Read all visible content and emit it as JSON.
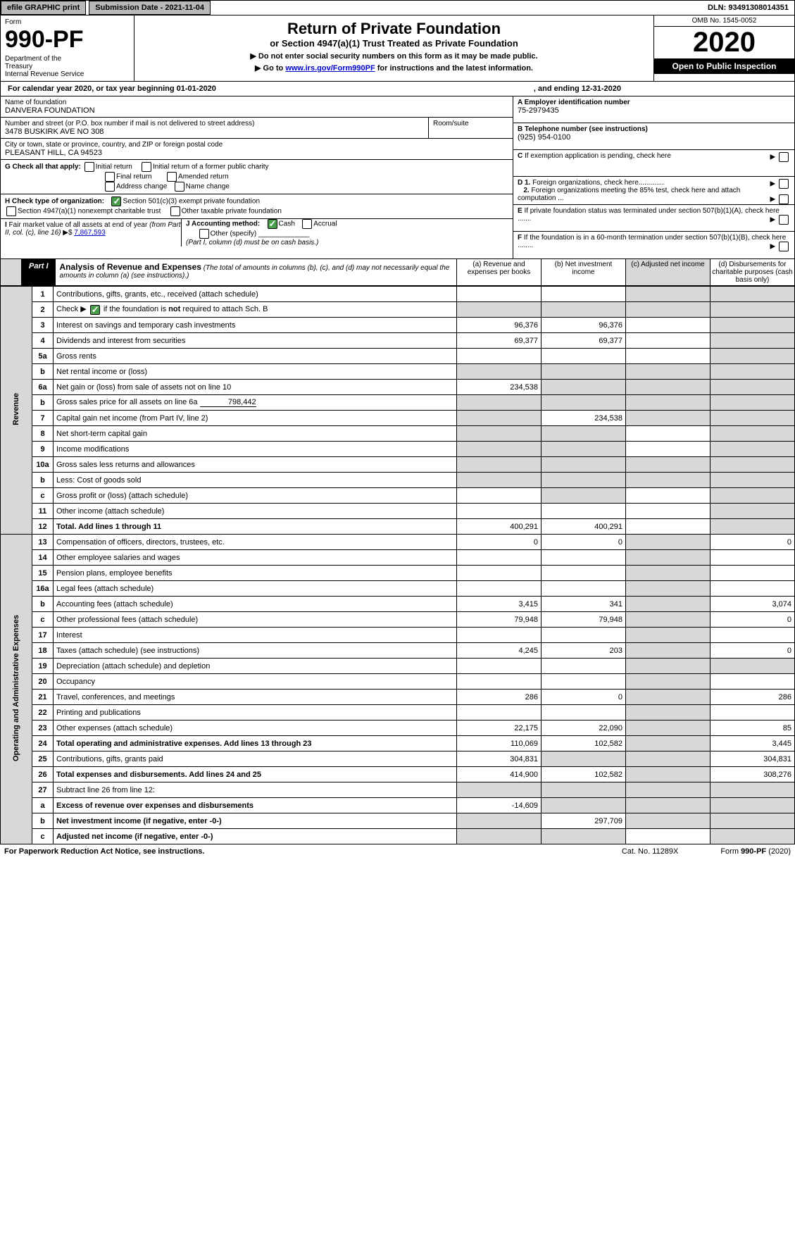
{
  "topbar": {
    "efile": "efile GRAPHIC print",
    "subdate_label": "Submission Date - 2021-11-04",
    "dln": "DLN: 93491308014351"
  },
  "header": {
    "form": "Form",
    "num": "990-PF",
    "dept": "Department of the Treasury\nInternal Revenue Service",
    "title": "Return of Private Foundation",
    "subtitle": "or Section 4947(a)(1) Trust Treated as Private Foundation",
    "note1": "▶ Do not enter social security numbers on this form as it may be made public.",
    "note2": "▶ Go to ",
    "link": "www.irs.gov/Form990PF",
    "note3": " for instructions and the latest information.",
    "omb": "OMB No. 1545-0052",
    "year": "2020",
    "open": "Open to Public Inspection"
  },
  "cal": {
    "text": "For calendar year 2020, or tax year beginning 01-01-2020",
    "end": ", and ending 12-31-2020"
  },
  "id": {
    "name_label": "Name of foundation",
    "name": "DANVERA FOUNDATION",
    "addr_label": "Number and street (or P.O. box number if mail is not delivered to street address)",
    "addr": "3478 BUSKIRK AVE NO 308",
    "room_label": "Room/suite",
    "city_label": "City or town, state or province, country, and ZIP or foreign postal code",
    "city": "PLEASANT HILL, CA  94523",
    "ein_label": "A Employer identification number",
    "ein": "75-2979435",
    "tel_label": "B Telephone number (see instructions)",
    "tel": "(925) 954-0100",
    "c_label": "C If exemption application is pending, check here",
    "d1": "D 1. Foreign organizations, check here.............",
    "d2": "2. Foreign organizations meeting the 85% test, check here and attach computation ...",
    "e_label": "E If private foundation status was terminated under section 507(b)(1)(A), check here .......",
    "f_label": "F If the foundation is in a 60-month termination under section 507(b)(1)(B), check here ........"
  },
  "g": {
    "label": "G Check all that apply:",
    "opts": [
      "Initial return",
      "Initial return of a former public charity",
      "Final return",
      "Amended return",
      "Address change",
      "Name change"
    ]
  },
  "h": {
    "label": "H Check type of organization:",
    "o1": "Section 501(c)(3) exempt private foundation",
    "o2": "Section 4947(a)(1) nonexempt charitable trust",
    "o3": "Other taxable private foundation"
  },
  "i": {
    "label": "I Fair market value of all assets at end of year (from Part II, col. (c), line 16) ▶$",
    "val": "7,867,593"
  },
  "j": {
    "label": "J Accounting method:",
    "cash": "Cash",
    "accrual": "Accrual",
    "other": "Other (specify)",
    "note": "(Part I, column (d) must be on cash basis.)"
  },
  "part1": {
    "label": "Part I",
    "title": "Analysis of Revenue and Expenses",
    "desc": "(The total of amounts in columns (b), (c), and (d) may not necessarily equal the amounts in column (a) (see instructions).)",
    "cola": "(a)   Revenue and expenses per books",
    "colb": "(b)  Net investment income",
    "colc": "(c)  Adjusted net income",
    "cold": "(d)  Disbursements for charitable purposes (cash basis only)"
  },
  "sides": {
    "rev": "Revenue",
    "exp": "Operating and Administrative Expenses"
  },
  "rows": [
    {
      "n": "1",
      "d": "Contributions, gifts, grants, etc., received (attach schedule)",
      "a": "",
      "b": "",
      "c": "g",
      "dd": "g"
    },
    {
      "n": "2",
      "d": "Check ▶ [✓] if the foundation is not required to attach Sch. B",
      "a": "g",
      "b": "g",
      "c": "g",
      "dd": "g",
      "check": true
    },
    {
      "n": "3",
      "d": "Interest on savings and temporary cash investments",
      "a": "96,376",
      "b": "96,376",
      "c": "",
      "dd": "g"
    },
    {
      "n": "4",
      "d": "Dividends and interest from securities",
      "a": "69,377",
      "b": "69,377",
      "c": "",
      "dd": "g"
    },
    {
      "n": "5a",
      "d": "Gross rents",
      "a": "",
      "b": "",
      "c": "",
      "dd": "g"
    },
    {
      "n": "b",
      "d": "Net rental income or (loss)",
      "a": "g",
      "b": "g",
      "c": "g",
      "dd": "g",
      "blank": true
    },
    {
      "n": "6a",
      "d": "Net gain or (loss) from sale of assets not on line 10",
      "a": "234,538",
      "b": "g",
      "c": "g",
      "dd": "g"
    },
    {
      "n": "b",
      "d": "Gross sales price for all assets on line 6a",
      "v": "798,442",
      "a": "g",
      "b": "g",
      "c": "g",
      "dd": "g",
      "blank": true
    },
    {
      "n": "7",
      "d": "Capital gain net income (from Part IV, line 2)",
      "a": "g",
      "b": "234,538",
      "c": "g",
      "dd": "g"
    },
    {
      "n": "8",
      "d": "Net short-term capital gain",
      "a": "g",
      "b": "g",
      "c": "",
      "dd": "g"
    },
    {
      "n": "9",
      "d": "Income modifications",
      "a": "g",
      "b": "g",
      "c": "",
      "dd": "g"
    },
    {
      "n": "10a",
      "d": "Gross sales less returns and allowances",
      "a": "g",
      "b": "g",
      "c": "g",
      "dd": "g",
      "blank": true
    },
    {
      "n": "b",
      "d": "Less: Cost of goods sold",
      "a": "g",
      "b": "g",
      "c": "g",
      "dd": "g",
      "blank": true
    },
    {
      "n": "c",
      "d": "Gross profit or (loss) (attach schedule)",
      "a": "",
      "b": "g",
      "c": "",
      "dd": "g"
    },
    {
      "n": "11",
      "d": "Other income (attach schedule)",
      "a": "",
      "b": "",
      "c": "",
      "dd": "g"
    },
    {
      "n": "12",
      "d": "Total. Add lines 1 through 11",
      "a": "400,291",
      "b": "400,291",
      "c": "",
      "dd": "g",
      "bold": true
    },
    {
      "n": "13",
      "d": "Compensation of officers, directors, trustees, etc.",
      "a": "0",
      "b": "0",
      "c": "g",
      "dd": "0"
    },
    {
      "n": "14",
      "d": "Other employee salaries and wages",
      "a": "",
      "b": "",
      "c": "g",
      "dd": ""
    },
    {
      "n": "15",
      "d": "Pension plans, employee benefits",
      "a": "",
      "b": "",
      "c": "g",
      "dd": ""
    },
    {
      "n": "16a",
      "d": "Legal fees (attach schedule)",
      "a": "",
      "b": "",
      "c": "g",
      "dd": ""
    },
    {
      "n": "b",
      "d": "Accounting fees (attach schedule)",
      "a": "3,415",
      "b": "341",
      "c": "g",
      "dd": "3,074"
    },
    {
      "n": "c",
      "d": "Other professional fees (attach schedule)",
      "a": "79,948",
      "b": "79,948",
      "c": "g",
      "dd": "0"
    },
    {
      "n": "17",
      "d": "Interest",
      "a": "",
      "b": "",
      "c": "g",
      "dd": ""
    },
    {
      "n": "18",
      "d": "Taxes (attach schedule) (see instructions)",
      "a": "4,245",
      "b": "203",
      "c": "g",
      "dd": "0"
    },
    {
      "n": "19",
      "d": "Depreciation (attach schedule) and depletion",
      "a": "",
      "b": "",
      "c": "g",
      "dd": "g"
    },
    {
      "n": "20",
      "d": "Occupancy",
      "a": "",
      "b": "",
      "c": "g",
      "dd": ""
    },
    {
      "n": "21",
      "d": "Travel, conferences, and meetings",
      "a": "286",
      "b": "0",
      "c": "g",
      "dd": "286"
    },
    {
      "n": "22",
      "d": "Printing and publications",
      "a": "",
      "b": "",
      "c": "g",
      "dd": ""
    },
    {
      "n": "23",
      "d": "Other expenses (attach schedule)",
      "a": "22,175",
      "b": "22,090",
      "c": "g",
      "dd": "85"
    },
    {
      "n": "24",
      "d": "Total operating and administrative expenses. Add lines 13 through 23",
      "a": "110,069",
      "b": "102,582",
      "c": "g",
      "dd": "3,445",
      "bold": true
    },
    {
      "n": "25",
      "d": "Contributions, gifts, grants paid",
      "a": "304,831",
      "b": "g",
      "c": "g",
      "dd": "304,831"
    },
    {
      "n": "26",
      "d": "Total expenses and disbursements. Add lines 24 and 25",
      "a": "414,900",
      "b": "102,582",
      "c": "g",
      "dd": "308,276",
      "bold": true
    },
    {
      "n": "27",
      "d": "Subtract line 26 from line 12:",
      "a": "g",
      "b": "g",
      "c": "g",
      "dd": "g"
    },
    {
      "n": "a",
      "d": "Excess of revenue over expenses and disbursements",
      "a": "-14,609",
      "b": "g",
      "c": "g",
      "dd": "g",
      "bold": true
    },
    {
      "n": "b",
      "d": "Net investment income (if negative, enter -0-)",
      "a": "g",
      "b": "297,709",
      "c": "g",
      "dd": "g",
      "bold": true
    },
    {
      "n": "c",
      "d": "Adjusted net income (if negative, enter -0-)",
      "a": "g",
      "b": "g",
      "c": "",
      "dd": "g",
      "bold": true
    }
  ],
  "footer": {
    "left": "For Paperwork Reduction Act Notice, see instructions.",
    "mid": "Cat. No. 11289X",
    "right": "Form 990-PF (2020)"
  }
}
